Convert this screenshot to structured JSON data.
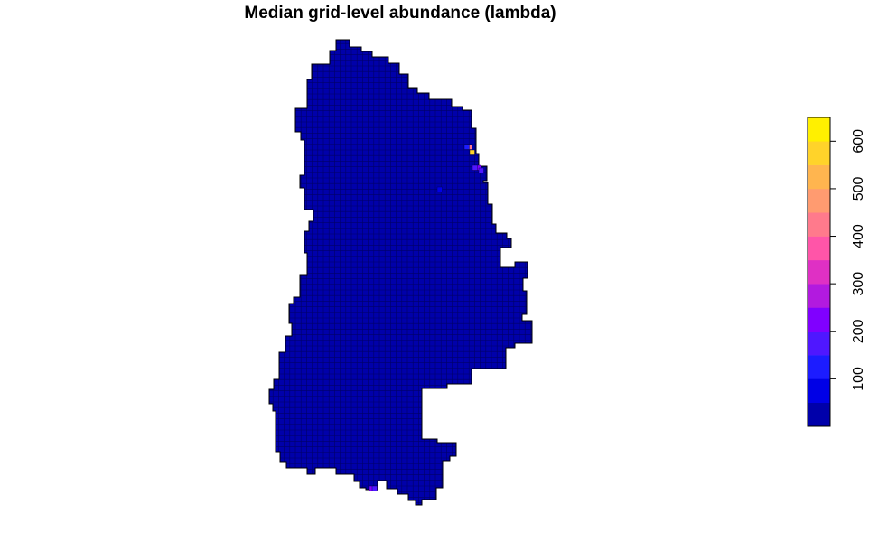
{
  "chart_data": {
    "type": "heatmap",
    "title": "Median grid-level abundance (lambda)",
    "xlabel": "",
    "ylabel": "",
    "legend": {
      "placement": "right",
      "orientation": "vertical",
      "range": [
        0,
        650
      ],
      "breaks": [
        0,
        50,
        100,
        150,
        200,
        250,
        300,
        350,
        400,
        450,
        500,
        550,
        600,
        650
      ],
      "ticks": [
        100,
        200,
        300,
        400,
        500,
        600
      ],
      "tick_labels": [
        "100",
        "200",
        "300",
        "400",
        "500",
        "600"
      ],
      "colors": [
        "#0000AA",
        "#0000E6",
        "#1C1CFF",
        "#4F17FF",
        "#8000FF",
        "#B21ADF",
        "#DF30C4",
        "#FF55A8",
        "#FF7A8C",
        "#FF9B70",
        "#FFB54F",
        "#FFD32A",
        "#FFF000"
      ]
    },
    "map": {
      "background_value": 5,
      "grid_lines": true,
      "grid_line_color": "#000066",
      "hotspots": [
        {
          "value": 575,
          "color": "#FFD32A"
        },
        {
          "value": 430,
          "color": "#FF7A8C"
        },
        {
          "value": 230,
          "color": "#8000FF"
        },
        {
          "value": 180,
          "color": "#4F17FF"
        },
        {
          "value": 150,
          "color": "#4F17FF"
        },
        {
          "value": 110,
          "color": "#1C1CFF"
        },
        {
          "value": 95,
          "color": "#0000E6"
        },
        {
          "value": 210,
          "color": "#8000FF"
        },
        {
          "value": 160,
          "color": "#4F17FF"
        }
      ]
    }
  }
}
